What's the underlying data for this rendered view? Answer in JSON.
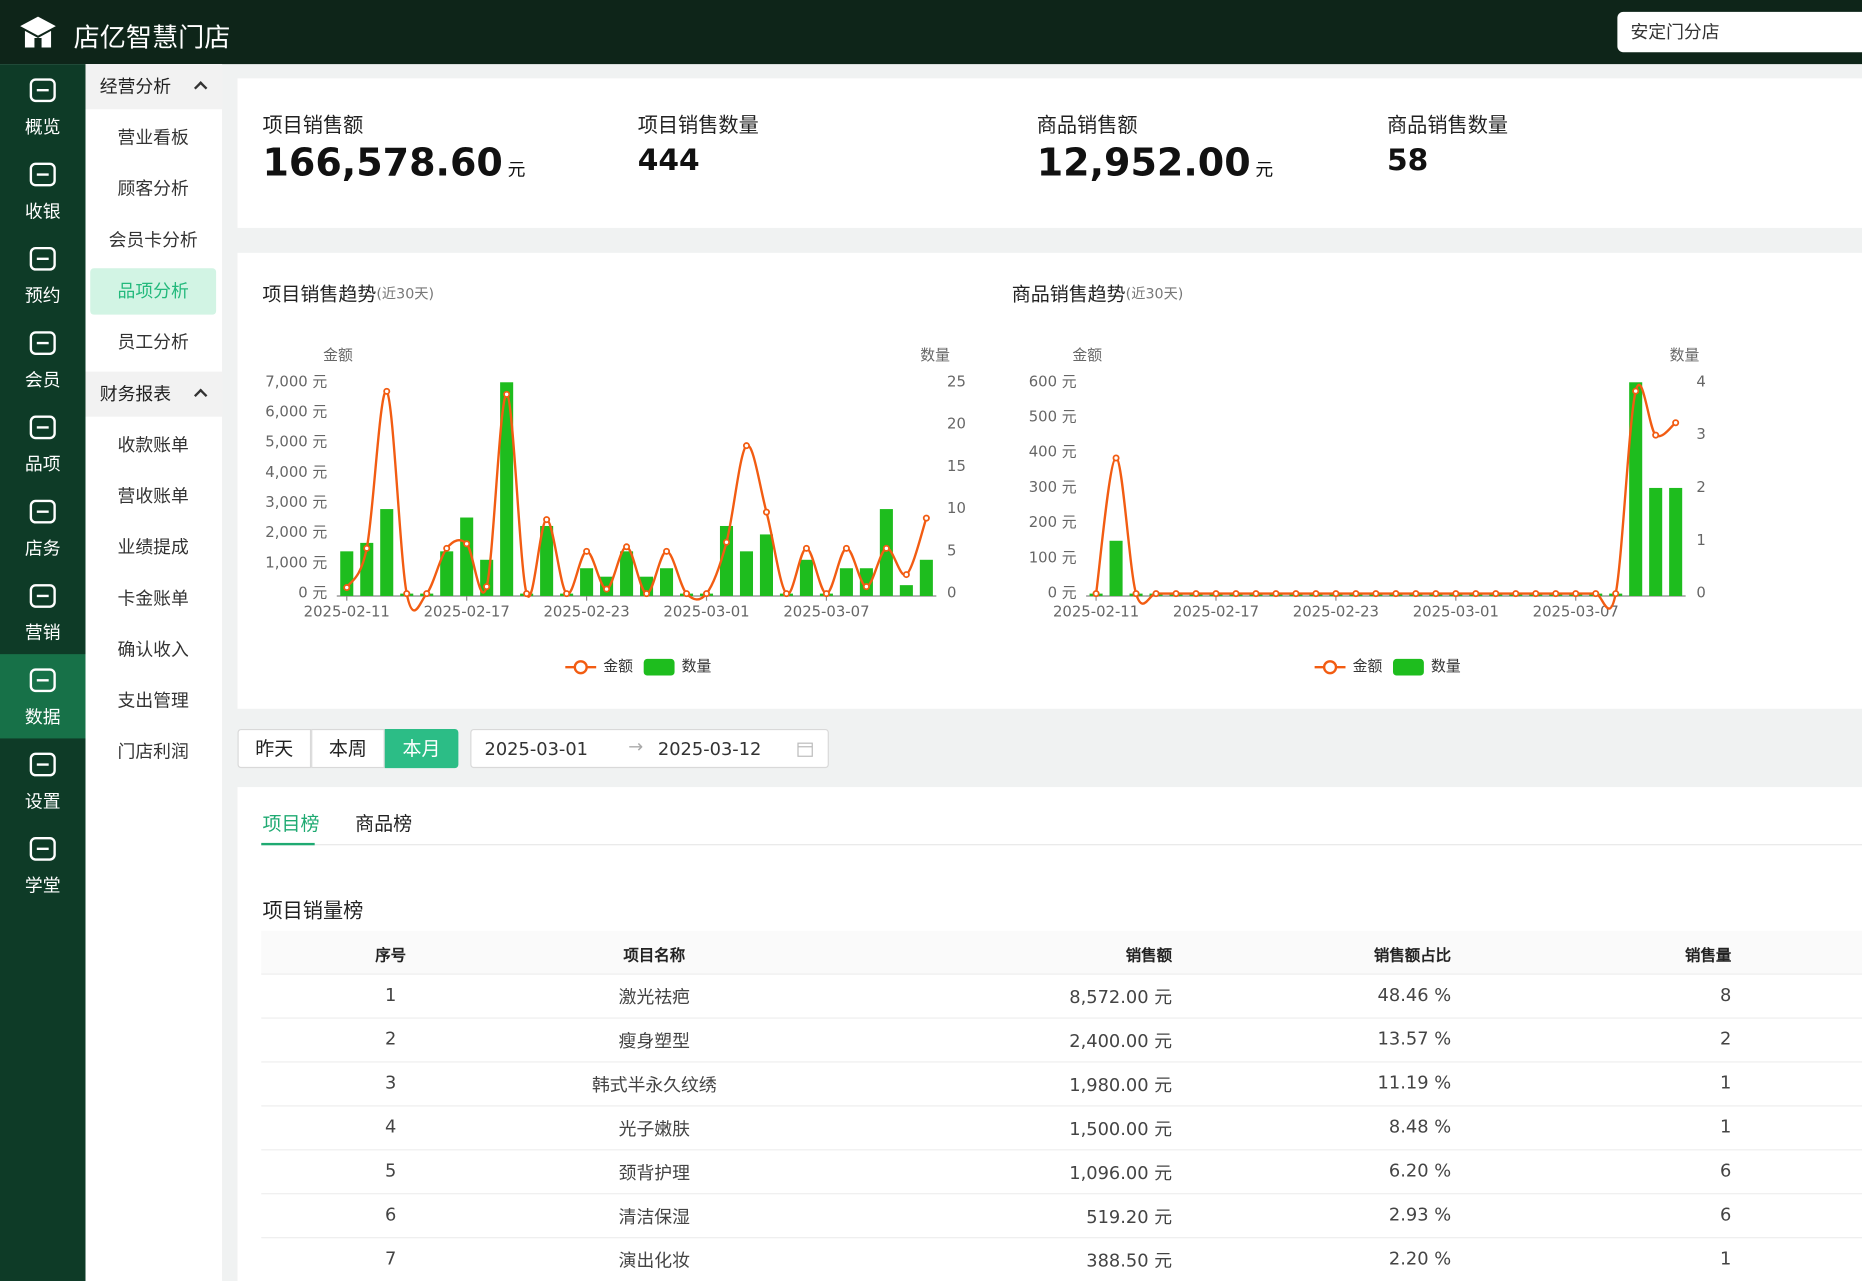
{
  "header": {
    "brand": "店亿智慧门店",
    "store": "安定门分店"
  },
  "nav": [
    "概览",
    "收银",
    "预约",
    "会员",
    "品项",
    "店务",
    "营销",
    "数据",
    "设置",
    "学堂"
  ],
  "submenu": [
    {
      "title": "经营分析",
      "items": [
        "营业看板",
        "顾客分析",
        "会员卡分析",
        "品项分析",
        "员工分析"
      ]
    },
    {
      "title": "财务报表",
      "items": [
        "收款账单",
        "营收账单",
        "业绩提成",
        "卡金账单",
        "确认收入",
        "支出管理",
        "门店利润"
      ]
    }
  ],
  "stats": [
    {
      "label": "项目销售额",
      "value": "166,578.60",
      "unit": "元"
    },
    {
      "label": "项目销售数量",
      "value": "444"
    },
    {
      "label": "商品销售额",
      "value": "12,952.00",
      "unit": "元"
    },
    {
      "label": "商品销售数量",
      "value": "58"
    }
  ],
  "chart_data": [
    {
      "type": "combo",
      "title": "项目销售趋势",
      "subtitle": "(近30天)",
      "y_label": "金额",
      "y2_label": "数量",
      "categories": [
        "2025-02-11",
        null,
        null,
        null,
        null,
        null,
        "2025-02-17",
        null,
        null,
        null,
        null,
        null,
        "2025-02-23",
        null,
        null,
        null,
        null,
        null,
        "2025-03-01",
        null,
        null,
        null,
        null,
        null,
        "2025-03-07",
        null,
        null,
        null,
        null,
        null
      ],
      "series": [
        {
          "name": "金额",
          "type": "line",
          "color": "#f25c12",
          "values": [
            200,
            1500,
            6700,
            0,
            0,
            1500,
            1650,
            230,
            6600,
            0,
            2450,
            0,
            1400,
            150,
            1550,
            0,
            1400,
            0,
            0,
            1700,
            4900,
            2700,
            0,
            1500,
            0,
            1500,
            230,
            1500,
            630,
            2500
          ]
        },
        {
          "name": "数量",
          "type": "bar",
          "color": "#1ebd1e",
          "axis": "y2",
          "values": [
            5,
            6,
            10,
            0,
            0,
            5,
            9,
            4,
            25,
            0,
            8,
            0,
            3,
            2,
            5,
            2,
            3,
            0,
            0,
            8,
            5,
            7,
            0,
            4,
            0,
            3,
            3,
            10,
            1,
            4
          ]
        }
      ],
      "ylim": [
        0,
        7000
      ],
      "yticks": [
        {
          "value": 0,
          "label": "0 元"
        },
        {
          "value": 1000,
          "label": "1,000 元"
        },
        {
          "value": 2000,
          "label": "2,000 元"
        },
        {
          "value": 3000,
          "label": "3,000 元"
        },
        {
          "value": 4000,
          "label": "4,000 元"
        },
        {
          "value": 5000,
          "label": "5,000 元"
        },
        {
          "value": 6000,
          "label": "6,000 元"
        },
        {
          "value": 7000,
          "label": "7,000 元"
        }
      ],
      "y2lim": [
        0,
        25
      ],
      "y2ticks": [
        0,
        5,
        10,
        15,
        20,
        25
      ],
      "legend": "bottom"
    },
    {
      "type": "combo",
      "title": "商品销售趋势",
      "subtitle": "(近30天)",
      "y_label": "金额",
      "y2_label": "数量",
      "categories": [
        "2025-02-11",
        null,
        null,
        null,
        null,
        null,
        "2025-02-17",
        null,
        null,
        null,
        null,
        null,
        "2025-02-23",
        null,
        null,
        null,
        null,
        null,
        "2025-03-01",
        null,
        null,
        null,
        null,
        null,
        "2025-03-07",
        null,
        null,
        null,
        null,
        null
      ],
      "series": [
        {
          "name": "金额",
          "type": "line",
          "color": "#f25c12",
          "values": [
            0,
            385,
            0,
            0,
            0,
            0,
            0,
            0,
            0,
            0,
            0,
            0,
            0,
            0,
            0,
            0,
            0,
            0,
            0,
            0,
            0,
            0,
            0,
            0,
            0,
            0,
            0,
            575,
            450,
            485
          ]
        },
        {
          "name": "数量",
          "type": "bar",
          "color": "#1ebd1e",
          "axis": "y2",
          "values": [
            0,
            1,
            0,
            0,
            0,
            0,
            0,
            0,
            0,
            0,
            0,
            0,
            0,
            0,
            0,
            0,
            0,
            0,
            0,
            0,
            0,
            0,
            0,
            0,
            0,
            0,
            0,
            4,
            2,
            2
          ]
        }
      ],
      "ylim": [
        0,
        600
      ],
      "yticks": [
        {
          "value": 0,
          "label": "0 元"
        },
        {
          "value": 100,
          "label": "100 元"
        },
        {
          "value": 200,
          "label": "200 元"
        },
        {
          "value": 300,
          "label": "300 元"
        },
        {
          "value": 400,
          "label": "400 元"
        },
        {
          "value": 500,
          "label": "500 元"
        },
        {
          "value": 600,
          "label": "600 元"
        }
      ],
      "y2lim": [
        0,
        4
      ],
      "y2ticks": [
        0,
        1,
        2,
        3,
        4
      ],
      "legend": "bottom"
    }
  ],
  "filters": {
    "buttons": [
      "昨天",
      "本周",
      "本月"
    ],
    "start": "2025-03-01",
    "end": "2025-03-12"
  },
  "tabs": [
    "项目榜",
    "商品榜"
  ],
  "table": {
    "title": "项目销量榜",
    "columns": [
      "序号",
      "项目名称",
      "销售额",
      "销售额占比",
      "销售量"
    ],
    "rows": [
      [
        "1",
        "激光祛疤",
        "8,572.00 元",
        "48.46 %",
        "8"
      ],
      [
        "2",
        "瘦身塑型",
        "2,400.00 元",
        "13.57 %",
        "2"
      ],
      [
        "3",
        "韩式半永久纹绣",
        "1,980.00 元",
        "11.19 %",
        "1"
      ],
      [
        "4",
        "光子嫩肤",
        "1,500.00 元",
        "8.48 %",
        "1"
      ],
      [
        "5",
        "颈背护理",
        "1,096.00 元",
        "6.20 %",
        "6"
      ],
      [
        "6",
        "清洁保湿",
        "519.20 元",
        "2.93 %",
        "6"
      ],
      [
        "7",
        "演出化妆",
        "388.50 元",
        "2.20 %",
        "1"
      ]
    ]
  }
}
